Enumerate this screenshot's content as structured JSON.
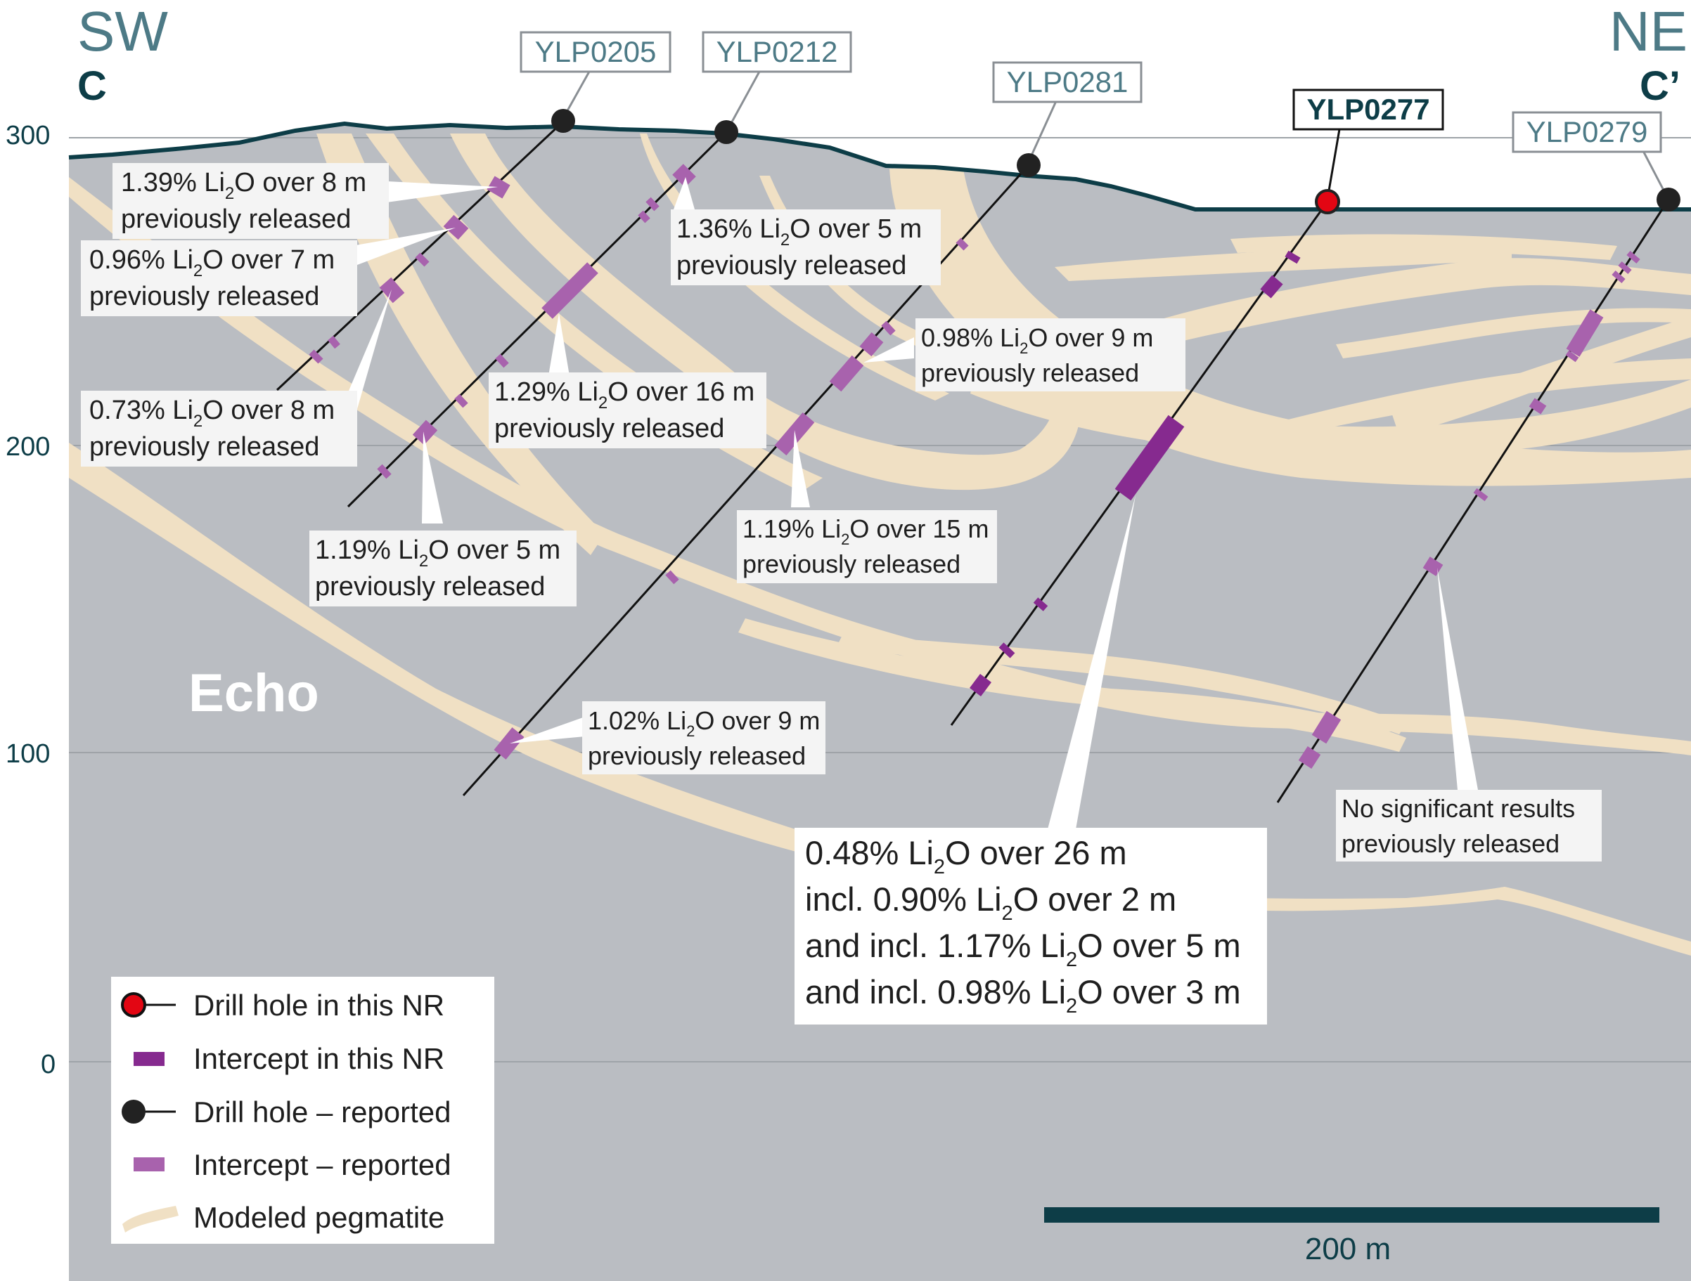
{
  "orientation": {
    "left_direction": "SW",
    "left_section": "C",
    "right_direction": "NE",
    "right_section": "C’"
  },
  "elevation_axis": {
    "ticks": [
      "300",
      "200",
      "100",
      "0"
    ]
  },
  "unit_label": "Echo",
  "scale_bar": {
    "label": "200 m"
  },
  "holes": [
    {
      "id": "YLP0205",
      "status": "reported"
    },
    {
      "id": "YLP0212",
      "status": "reported"
    },
    {
      "id": "YLP0281",
      "status": "reported"
    },
    {
      "id": "YLP0277",
      "status": "this NR"
    },
    {
      "id": "YLP0279",
      "status": "reported"
    }
  ],
  "callouts": [
    {
      "id": "c1",
      "lines": [
        {
          "pre": "1.39% Li",
          "sub": "2",
          "post": "O over 8 m"
        },
        {
          "text": "previously released"
        }
      ]
    },
    {
      "id": "c2",
      "lines": [
        {
          "pre": "0.96% Li",
          "sub": "2",
          "post": "O over 7 m"
        },
        {
          "text": "previously released"
        }
      ]
    },
    {
      "id": "c3",
      "lines": [
        {
          "pre": "0.73% Li",
          "sub": "2",
          "post": "O over 8 m"
        },
        {
          "text": "previously released"
        }
      ]
    },
    {
      "id": "c4",
      "lines": [
        {
          "pre": "1.19% Li",
          "sub": "2",
          "post": "O over 5 m"
        },
        {
          "text": "previously released"
        }
      ]
    },
    {
      "id": "c5",
      "lines": [
        {
          "pre": "1.36% Li",
          "sub": "2",
          "post": "O over 5 m"
        },
        {
          "text": "previously released"
        }
      ]
    },
    {
      "id": "c6",
      "lines": [
        {
          "pre": "1.29% Li",
          "sub": "2",
          "post": "O over 16 m"
        },
        {
          "text": "previously released"
        }
      ]
    },
    {
      "id": "c7",
      "lines": [
        {
          "pre": "1.02% Li",
          "sub": "2",
          "post": "O over 9 m"
        },
        {
          "text": "previously released"
        }
      ]
    },
    {
      "id": "c8",
      "lines": [
        {
          "pre": "0.98% Li",
          "sub": "2",
          "post": "O over 9 m"
        },
        {
          "text": "previously released"
        }
      ]
    },
    {
      "id": "c9",
      "lines": [
        {
          "pre": "1.19% Li",
          "sub": "2",
          "post": "O over 15 m"
        },
        {
          "text": "previously released"
        }
      ]
    },
    {
      "id": "c10",
      "lines": [
        {
          "pre": "0.48% Li",
          "sub": "2",
          "post": "O over 26 m"
        },
        {
          "pre": "incl. 0.90% Li",
          "sub": "2",
          "post": "O over 2 m"
        },
        {
          "pre": "and incl. 1.17% Li",
          "sub": "2",
          "post": "O over 5 m"
        },
        {
          "pre": "and incl. 0.98% Li",
          "sub": "2",
          "post": "O over 3 m"
        }
      ]
    },
    {
      "id": "c11",
      "lines": [
        {
          "text": "No significant results"
        },
        {
          "text": "previously released"
        }
      ]
    }
  ],
  "legend": [
    {
      "label": "Drill hole in this NR",
      "symbol": "drill-hole-new"
    },
    {
      "label": "Intercept in this NR",
      "symbol": "intercept-new"
    },
    {
      "label": "Drill hole – reported",
      "symbol": "drill-hole-reported"
    },
    {
      "label": "Intercept – reported",
      "symbol": "intercept-reported"
    },
    {
      "label": "Modeled pegmatite",
      "symbol": "pegmatite"
    }
  ],
  "colors": {
    "bedrock": "#babdc2",
    "pegmatite": "#f0e0c4",
    "topography": "#0d3d47",
    "intercept_reported": "#a862ad",
    "intercept_new": "#862a8f",
    "collar_reported": "#222222",
    "collar_new": "#e30613",
    "hole_label_text": "#4d7a86",
    "axis_text": "#0d3d47"
  }
}
